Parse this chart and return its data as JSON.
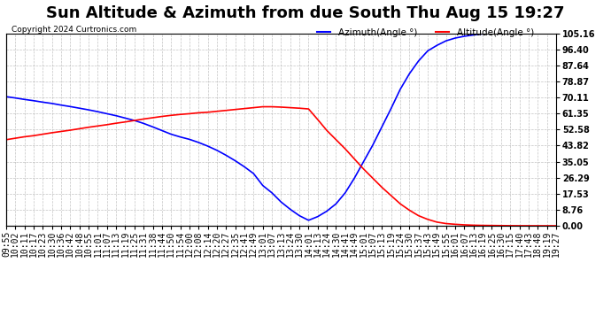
{
  "title": "Sun Altitude & Azimuth from due South Thu Aug 15 19:27",
  "copyright": "Copyright 2024 Curtronics.com",
  "legend_blue": "Azimuth(Angle °)",
  "legend_red": "Altitude(Angle °)",
  "yticks": [
    0.0,
    8.76,
    17.53,
    26.29,
    35.05,
    43.82,
    52.58,
    61.35,
    70.11,
    78.87,
    87.64,
    96.4,
    105.16
  ],
  "ymin": 0.0,
  "ymax": 105.16,
  "blue_color": "#0000ff",
  "red_color": "#ff0000",
  "bg_color": "#ffffff",
  "grid_color": "#aaaaaa",
  "title_fontsize": 13,
  "label_fontsize": 7.5,
  "tick_fontsize": 7,
  "xtick_times": [
    "09:55",
    "10:02",
    "10:11",
    "10:17",
    "10:23",
    "10:30",
    "10:36",
    "10:42",
    "10:48",
    "10:55",
    "11:01",
    "11:07",
    "11:13",
    "11:19",
    "11:25",
    "11:31",
    "11:38",
    "11:44",
    "11:50",
    "11:54",
    "12:00",
    "12:08",
    "12:14",
    "12:20",
    "12:27",
    "12:35",
    "12:41",
    "12:49",
    "13:01",
    "13:07",
    "13:13",
    "13:24",
    "13:30",
    "14:01",
    "14:13",
    "14:24",
    "14:30",
    "14:41",
    "14:49",
    "15:01",
    "15:07",
    "15:13",
    "15:19",
    "15:24",
    "15:30",
    "15:37",
    "15:43",
    "15:49",
    "15:55",
    "16:01",
    "16:07",
    "16:13",
    "16:19",
    "16:25",
    "16:30",
    "17:15",
    "17:40",
    "17:43",
    "18:48",
    "19:19",
    "19:27"
  ],
  "azimuth_data": [
    [
      0,
      70.5
    ],
    [
      1,
      69.8
    ],
    [
      2,
      69.0
    ],
    [
      3,
      68.3
    ],
    [
      4,
      67.5
    ],
    [
      5,
      66.8
    ],
    [
      6,
      65.9
    ],
    [
      7,
      65.1
    ],
    [
      8,
      64.2
    ],
    [
      9,
      63.3
    ],
    [
      10,
      62.3
    ],
    [
      11,
      61.2
    ],
    [
      12,
      60.1
    ],
    [
      13,
      58.8
    ],
    [
      14,
      57.5
    ],
    [
      15,
      55.9
    ],
    [
      16,
      54.0
    ],
    [
      17,
      52.0
    ],
    [
      18,
      50.0
    ],
    [
      19,
      48.5
    ],
    [
      20,
      47.2
    ],
    [
      21,
      45.5
    ],
    [
      22,
      43.5
    ],
    [
      23,
      41.2
    ],
    [
      24,
      38.5
    ],
    [
      25,
      35.5
    ],
    [
      26,
      32.2
    ],
    [
      27,
      28.5
    ],
    [
      28,
      22.0
    ],
    [
      29,
      18.0
    ],
    [
      30,
      13.0
    ],
    [
      31,
      9.0
    ],
    [
      32,
      5.5
    ],
    [
      33,
      3.0
    ],
    [
      34,
      5.0
    ],
    [
      35,
      8.0
    ],
    [
      36,
      12.0
    ],
    [
      37,
      18.0
    ],
    [
      38,
      26.0
    ],
    [
      39,
      35.0
    ],
    [
      40,
      44.0
    ],
    [
      41,
      54.0
    ],
    [
      42,
      64.0
    ],
    [
      43,
      74.5
    ],
    [
      44,
      83.0
    ],
    [
      45,
      90.0
    ],
    [
      46,
      95.5
    ],
    [
      47,
      98.5
    ],
    [
      48,
      101.0
    ],
    [
      49,
      102.5
    ],
    [
      50,
      103.5
    ],
    [
      51,
      104.2
    ],
    [
      52,
      104.8
    ],
    [
      53,
      105.0
    ],
    [
      54,
      105.1
    ],
    [
      55,
      105.16
    ],
    [
      56,
      105.16
    ],
    [
      57,
      105.16
    ],
    [
      58,
      105.16
    ],
    [
      59,
      105.16
    ],
    [
      60,
      105.16
    ]
  ],
  "altitude_data": [
    [
      0,
      47.0
    ],
    [
      1,
      47.8
    ],
    [
      2,
      48.6
    ],
    [
      3,
      49.2
    ],
    [
      4,
      50.0
    ],
    [
      5,
      50.8
    ],
    [
      6,
      51.5
    ],
    [
      7,
      52.2
    ],
    [
      8,
      53.0
    ],
    [
      9,
      53.8
    ],
    [
      10,
      54.5
    ],
    [
      11,
      55.2
    ],
    [
      12,
      56.0
    ],
    [
      13,
      56.7
    ],
    [
      14,
      57.5
    ],
    [
      15,
      58.3
    ],
    [
      16,
      59.0
    ],
    [
      17,
      59.7
    ],
    [
      18,
      60.3
    ],
    [
      19,
      60.8
    ],
    [
      20,
      61.2
    ],
    [
      21,
      61.7
    ],
    [
      22,
      62.0
    ],
    [
      23,
      62.5
    ],
    [
      24,
      63.0
    ],
    [
      25,
      63.5
    ],
    [
      26,
      64.0
    ],
    [
      27,
      64.5
    ],
    [
      28,
      65.0
    ],
    [
      29,
      65.0
    ],
    [
      30,
      64.8
    ],
    [
      31,
      64.5
    ],
    [
      32,
      64.2
    ],
    [
      33,
      63.8
    ],
    [
      34,
      58.0
    ],
    [
      35,
      52.0
    ],
    [
      36,
      47.0
    ],
    [
      37,
      42.0
    ],
    [
      38,
      36.5
    ],
    [
      39,
      31.0
    ],
    [
      40,
      26.0
    ],
    [
      41,
      21.0
    ],
    [
      42,
      16.5
    ],
    [
      43,
      12.0
    ],
    [
      44,
      8.5
    ],
    [
      45,
      5.5
    ],
    [
      46,
      3.5
    ],
    [
      47,
      2.0
    ],
    [
      48,
      1.2
    ],
    [
      49,
      0.8
    ],
    [
      50,
      0.5
    ],
    [
      51,
      0.3
    ],
    [
      52,
      0.2
    ],
    [
      53,
      0.15
    ],
    [
      54,
      0.1
    ],
    [
      55,
      0.05
    ],
    [
      56,
      0.02
    ],
    [
      57,
      0.01
    ],
    [
      58,
      0.0
    ],
    [
      59,
      0.0
    ],
    [
      60,
      0.0
    ]
  ]
}
